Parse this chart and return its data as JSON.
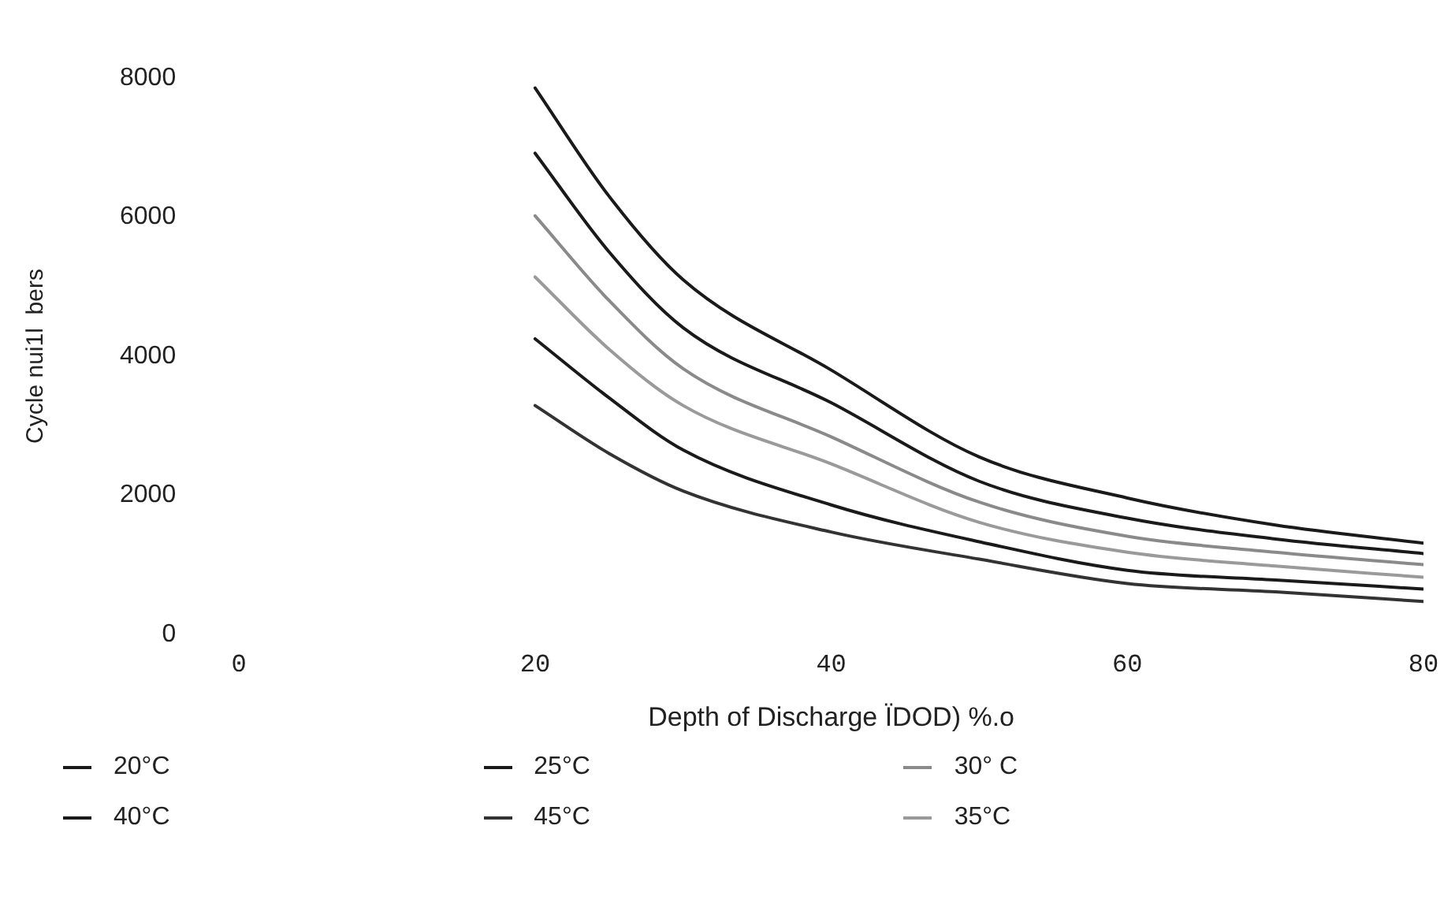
{
  "chart_data": {
    "type": "line",
    "xlabel": "Depth of Discharge ÏDOD) %.ο",
    "ylabel": "Cycle nui1l  bers",
    "x": [
      20,
      25,
      30,
      40,
      50,
      60,
      70,
      80
    ],
    "xlim": [
      0,
      80
    ],
    "xticks": [
      0,
      20,
      40,
      60,
      80
    ],
    "ylim": [
      0,
      8000
    ],
    "yticks": [
      0,
      2000,
      4000,
      6000,
      8000
    ],
    "legend": "bottom",
    "grid": false,
    "marker": "none",
    "line_style": "solid",
    "series": [
      {
        "name": "20°C",
        "color": "#1a1a1a",
        "values": [
          7860,
          6300,
          5100,
          3800,
          2550,
          1960,
          1570,
          1310
        ]
      },
      {
        "name": "25°C",
        "color": "#1a1a1a",
        "values": [
          6920,
          5500,
          4410,
          3330,
          2200,
          1670,
          1370,
          1160
        ]
      },
      {
        "name": "30° C",
        "color": "#8a8a8a",
        "values": [
          6020,
          4800,
          3820,
          2840,
          1900,
          1410,
          1180,
          1000
        ]
      },
      {
        "name": "40°C",
        "color": "#1a1a1a",
        "values": [
          4250,
          3400,
          2650,
          1860,
          1330,
          920,
          780,
          650
        ]
      },
      {
        "name": "45°C",
        "color": "#333333",
        "values": [
          3290,
          2600,
          2060,
          1470,
          1080,
          730,
          610,
          470
        ]
      },
      {
        "name": "35°C",
        "color": "#9a9a9a",
        "values": [
          5140,
          4100,
          3290,
          2450,
          1610,
          1180,
          980,
          820
        ]
      }
    ]
  }
}
